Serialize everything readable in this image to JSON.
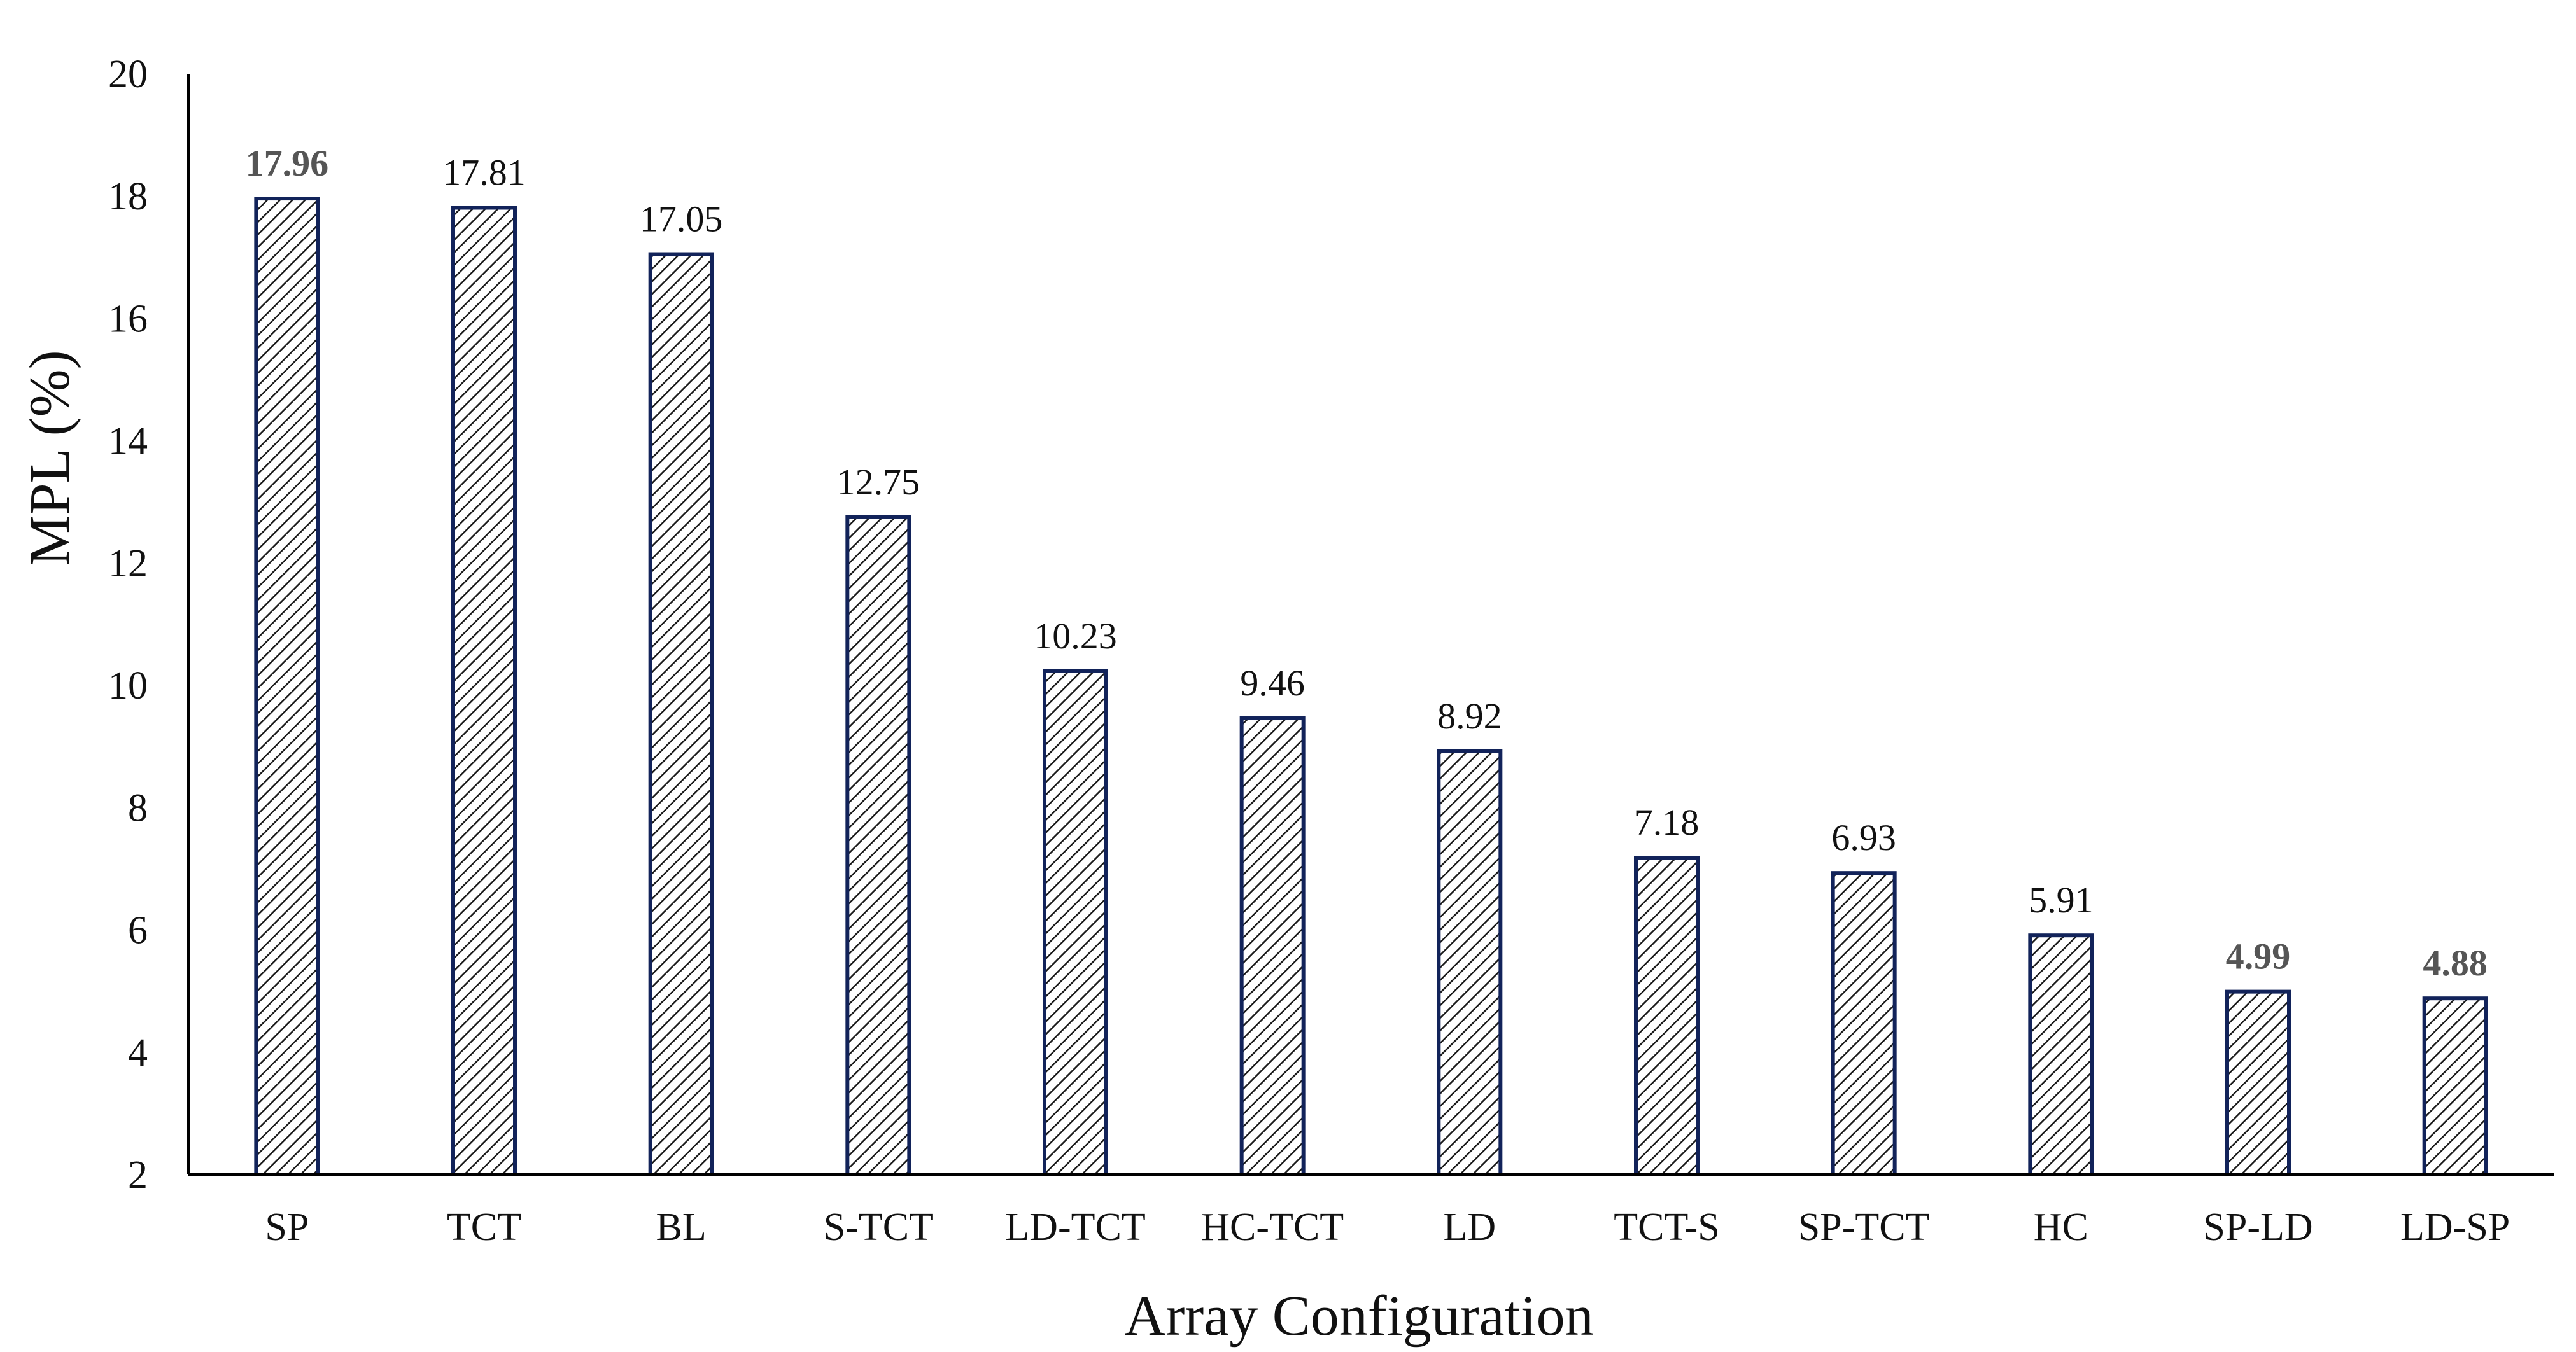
{
  "chart_data": {
    "type": "bar",
    "title": "",
    "xlabel": "Array Configuration",
    "ylabel": "MPL (%)",
    "ylim": [
      2,
      20
    ],
    "yticks": [
      2,
      4,
      6,
      8,
      10,
      12,
      14,
      16,
      18,
      20
    ],
    "grid": false,
    "legend": "none",
    "categories": [
      "SP",
      "TCT",
      "BL",
      "S-TCT",
      "LD-TCT",
      "HC-TCT",
      "LD",
      "TCT-S",
      "SP-TCT",
      "HC",
      "SP-LD",
      "LD-SP"
    ],
    "values": [
      17.96,
      17.81,
      17.05,
      12.75,
      10.23,
      9.46,
      8.92,
      7.18,
      6.93,
      5.91,
      4.99,
      4.88
    ],
    "value_labels": [
      "17.96",
      "17.81",
      "17.05",
      "12.75",
      "10.23",
      "9.46",
      "8.92",
      "7.18",
      "6.93",
      "5.91",
      "4.99",
      "4.88"
    ],
    "emphasized_labels": [
      "SP",
      "SP-LD",
      "LD-SP"
    ],
    "colors": {
      "bar_outline": "#12235a",
      "hatch": "#1a1a1a",
      "emphasis_label": "#555555"
    }
  }
}
